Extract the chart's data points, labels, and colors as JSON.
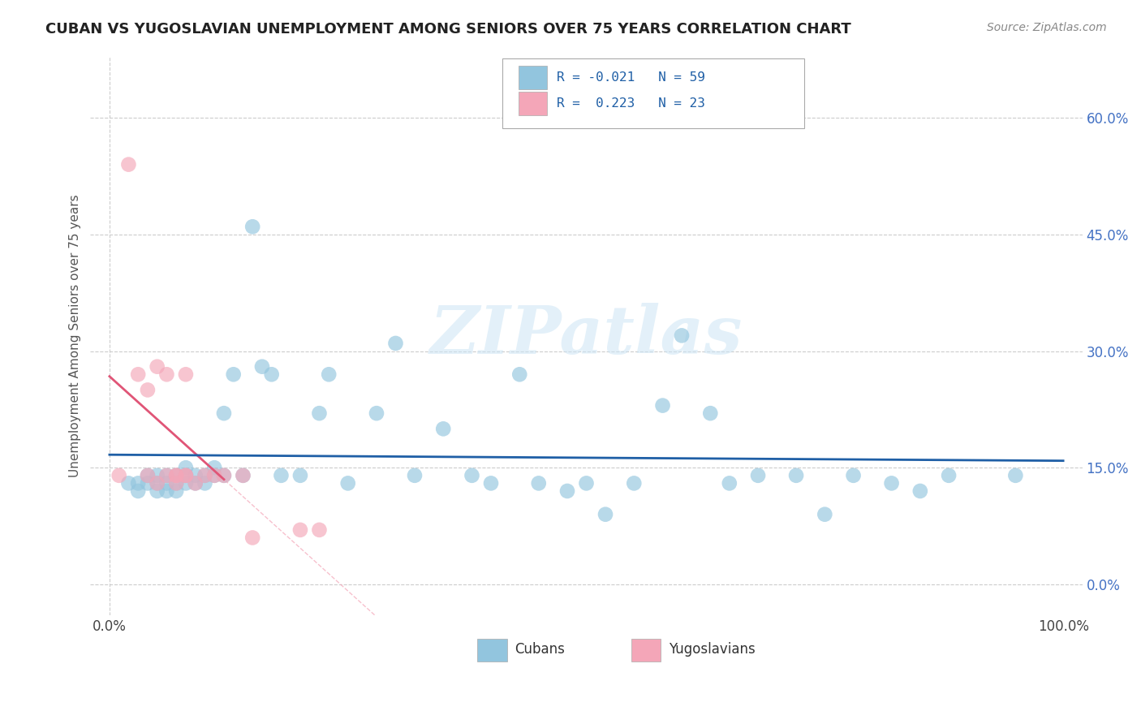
{
  "title": "CUBAN VS YUGOSLAVIAN UNEMPLOYMENT AMONG SENIORS OVER 75 YEARS CORRELATION CHART",
  "source": "Source: ZipAtlas.com",
  "ylabel": "Unemployment Among Seniors over 75 years",
  "ytick_labels": [
    "0.0%",
    "15.0%",
    "30.0%",
    "45.0%",
    "60.0%"
  ],
  "ytick_vals": [
    0.0,
    0.15,
    0.3,
    0.45,
    0.6
  ],
  "xtick_labels": [
    "0.0%",
    "100.0%"
  ],
  "xtick_vals": [
    0.0,
    1.0
  ],
  "legend_R_cubans": "R = -0.021",
  "legend_N_cubans": "N = 59",
  "legend_R_yugo": "R =  0.223",
  "legend_N_yugo": "N = 23",
  "legend_labels": [
    "Cubans",
    "Yugoslavians"
  ],
  "cubans_color": "#92c5de",
  "yugoslavians_color": "#f4a6b8",
  "cubans_line_color": "#1f5fa6",
  "yugoslavians_line_color": "#e05577",
  "yugoslavians_dash_color": "#f4a6b8",
  "cubans_x": [
    0.02,
    0.03,
    0.03,
    0.04,
    0.04,
    0.05,
    0.05,
    0.05,
    0.06,
    0.06,
    0.06,
    0.07,
    0.07,
    0.07,
    0.08,
    0.08,
    0.08,
    0.09,
    0.09,
    0.1,
    0.1,
    0.11,
    0.11,
    0.12,
    0.12,
    0.13,
    0.14,
    0.15,
    0.16,
    0.17,
    0.18,
    0.2,
    0.22,
    0.23,
    0.25,
    0.28,
    0.3,
    0.32,
    0.35,
    0.38,
    0.4,
    0.43,
    0.45,
    0.48,
    0.5,
    0.52,
    0.55,
    0.58,
    0.6,
    0.63,
    0.65,
    0.68,
    0.72,
    0.75,
    0.78,
    0.82,
    0.85,
    0.88,
    0.95
  ],
  "cubans_y": [
    0.13,
    0.13,
    0.12,
    0.14,
    0.13,
    0.14,
    0.13,
    0.12,
    0.14,
    0.13,
    0.12,
    0.14,
    0.13,
    0.12,
    0.15,
    0.14,
    0.13,
    0.14,
    0.13,
    0.14,
    0.13,
    0.15,
    0.14,
    0.22,
    0.14,
    0.27,
    0.14,
    0.46,
    0.28,
    0.27,
    0.14,
    0.14,
    0.22,
    0.27,
    0.13,
    0.22,
    0.31,
    0.14,
    0.2,
    0.14,
    0.13,
    0.27,
    0.13,
    0.12,
    0.13,
    0.09,
    0.13,
    0.23,
    0.32,
    0.22,
    0.13,
    0.14,
    0.14,
    0.09,
    0.14,
    0.13,
    0.12,
    0.14,
    0.14
  ],
  "yugoslavians_x": [
    0.01,
    0.02,
    0.03,
    0.04,
    0.04,
    0.05,
    0.05,
    0.06,
    0.06,
    0.07,
    0.07,
    0.07,
    0.08,
    0.08,
    0.08,
    0.09,
    0.1,
    0.11,
    0.12,
    0.14,
    0.15,
    0.2,
    0.22
  ],
  "yugoslavians_y": [
    0.14,
    0.54,
    0.27,
    0.14,
    0.25,
    0.13,
    0.28,
    0.14,
    0.27,
    0.14,
    0.14,
    0.13,
    0.14,
    0.14,
    0.27,
    0.13,
    0.14,
    0.14,
    0.14,
    0.14,
    0.06,
    0.07,
    0.07
  ]
}
